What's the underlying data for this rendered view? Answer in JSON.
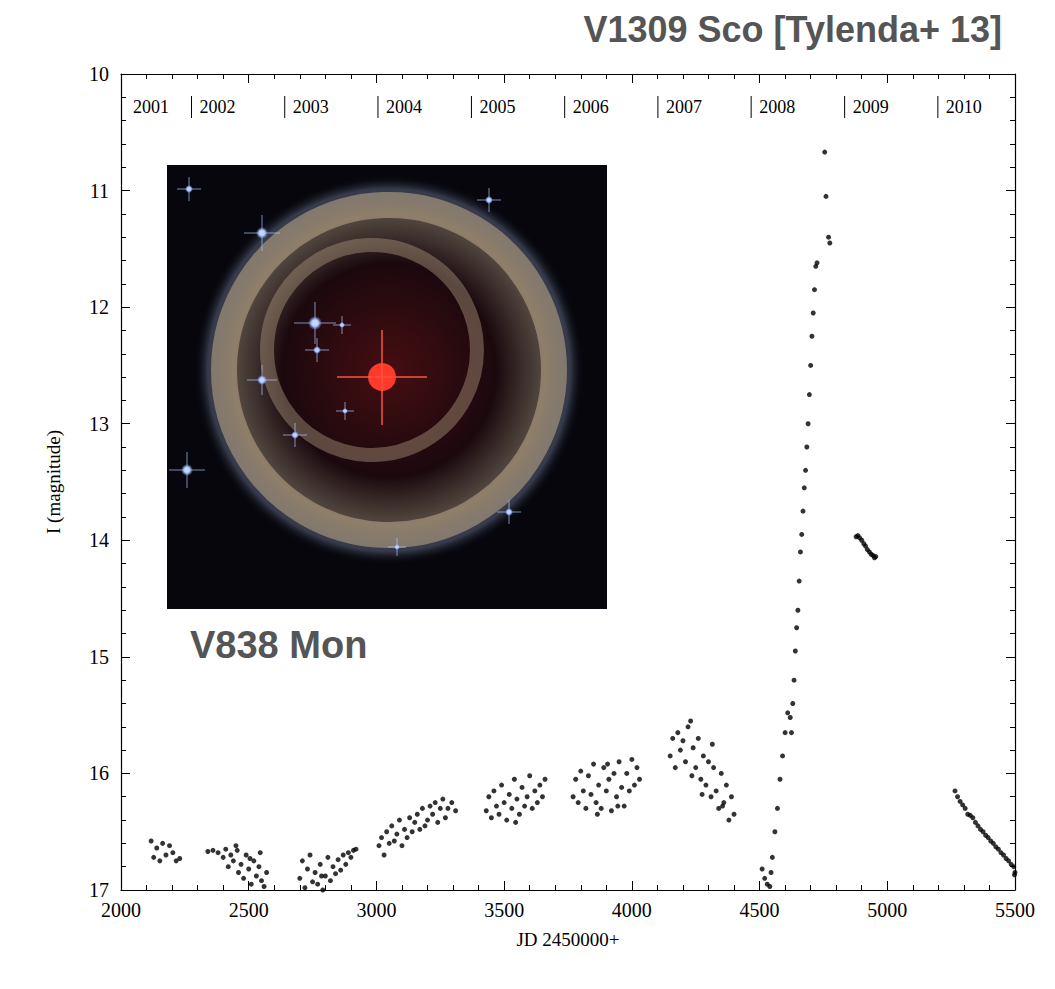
{
  "chart_data": {
    "type": "scatter",
    "title": "V1309 Sco [Tylenda+ 13]",
    "x_label": "JD 2450000+",
    "y_label": "I (magnitude)",
    "inset_label": "V838 Mon",
    "color": "#000000",
    "marker": "circle",
    "grid": false,
    "xlim": [
      2000,
      5500
    ],
    "xticks": [
      2000,
      2500,
      3000,
      3500,
      4000,
      4500,
      5000,
      5500
    ],
    "ylim": [
      10,
      17
    ],
    "yticks": [
      10,
      11,
      12,
      13,
      14,
      15,
      16,
      17
    ],
    "year_labels": [
      {
        "label": "2001",
        "x": 1911
      },
      {
        "label": "2002",
        "x": 2276
      },
      {
        "label": "2003",
        "x": 2641
      },
      {
        "label": "2004",
        "x": 3006
      },
      {
        "label": "2005",
        "x": 3372
      },
      {
        "label": "2006",
        "x": 3737
      },
      {
        "label": "2007",
        "x": 4102
      },
      {
        "label": "2008",
        "x": 4467
      },
      {
        "label": "2009",
        "x": 4833
      },
      {
        "label": "2010",
        "x": 5198
      }
    ],
    "x": [
      2118,
      2128,
      2140,
      2152,
      2163,
      2176,
      2190,
      2203,
      2216,
      2230,
      2340,
      2360,
      2380,
      2400,
      2410,
      2420,
      2430,
      2440,
      2450,
      2460,
      2470,
      2480,
      2490,
      2500,
      2510,
      2520,
      2530,
      2540,
      2550,
      2560,
      2570,
      2455,
      2505,
      2545,
      2700,
      2710,
      2720,
      2730,
      2740,
      2750,
      2760,
      2770,
      2780,
      2790,
      2800,
      2810,
      2820,
      2830,
      2840,
      2850,
      2860,
      2870,
      2880,
      2890,
      2900,
      2910,
      2920,
      2785,
      3010,
      3020,
      3030,
      3040,
      3050,
      3060,
      3070,
      3080,
      3090,
      3100,
      3110,
      3120,
      3130,
      3140,
      3150,
      3160,
      3170,
      3180,
      3190,
      3200,
      3210,
      3220,
      3230,
      3240,
      3250,
      3260,
      3270,
      3280,
      3295,
      3310,
      3430,
      3440,
      3450,
      3460,
      3470,
      3480,
      3490,
      3500,
      3510,
      3520,
      3530,
      3540,
      3550,
      3560,
      3570,
      3580,
      3590,
      3600,
      3610,
      3620,
      3630,
      3640,
      3650,
      3660,
      3545,
      3770,
      3780,
      3790,
      3800,
      3810,
      3820,
      3830,
      3840,
      3850,
      3860,
      3870,
      3880,
      3890,
      3900,
      3910,
      3920,
      3930,
      3940,
      3950,
      3960,
      3970,
      3980,
      3990,
      4000,
      4010,
      4020,
      4030,
      3865,
      3905,
      3945,
      4150,
      4160,
      4170,
      4180,
      4190,
      4200,
      4210,
      4220,
      4230,
      4240,
      4250,
      4260,
      4270,
      4280,
      4290,
      4300,
      4310,
      4320,
      4330,
      4340,
      4350,
      4360,
      4370,
      4380,
      4390,
      4400,
      4235,
      4275,
      4315,
      4355,
      4510,
      4520,
      4530,
      4540,
      4545,
      4550,
      4560,
      4570,
      4580,
      4590,
      4600,
      4610,
      4620,
      4625,
      4630,
      4635,
      4640,
      4645,
      4650,
      4655,
      4660,
      4665,
      4670,
      4675,
      4680,
      4685,
      4690,
      4695,
      4700,
      4705,
      4710,
      4715,
      4720,
      4725,
      4755,
      4760,
      4770,
      4775,
      4878,
      4885,
      4892,
      4900,
      4908,
      4915,
      4922,
      4930,
      4937,
      4944,
      4950,
      4955,
      5265,
      5275,
      5285,
      5295,
      5305,
      5315,
      5325,
      5335,
      5345,
      5355,
      5365,
      5375,
      5385,
      5395,
      5405,
      5415,
      5425,
      5435,
      5445,
      5455,
      5465,
      5475,
      5485,
      5495,
      5500,
      5498
    ],
    "values": [
      16.58,
      16.72,
      16.64,
      16.75,
      16.6,
      16.7,
      16.62,
      16.68,
      16.75,
      16.73,
      16.67,
      16.66,
      16.68,
      16.72,
      16.65,
      16.8,
      16.7,
      16.75,
      16.62,
      16.85,
      16.78,
      16.9,
      16.7,
      16.82,
      16.95,
      16.75,
      16.88,
      16.8,
      16.92,
      16.97,
      16.85,
      16.66,
      16.73,
      16.68,
      16.9,
      16.75,
      16.98,
      16.82,
      16.7,
      16.93,
      16.85,
      16.95,
      16.78,
      17.0,
      16.88,
      16.72,
      16.92,
      16.8,
      16.86,
      16.74,
      16.83,
      16.7,
      16.78,
      16.68,
      16.72,
      16.66,
      16.65,
      16.88,
      16.62,
      16.55,
      16.7,
      16.5,
      16.6,
      16.45,
      16.58,
      16.52,
      16.4,
      16.62,
      16.48,
      16.55,
      16.38,
      16.5,
      16.42,
      16.35,
      16.48,
      16.3,
      16.45,
      16.4,
      16.28,
      16.35,
      16.25,
      16.42,
      16.3,
      16.22,
      16.38,
      16.3,
      16.25,
      16.32,
      16.32,
      16.2,
      16.38,
      16.15,
      16.28,
      16.35,
      16.1,
      16.25,
      16.4,
      16.18,
      16.3,
      16.05,
      16.22,
      16.35,
      16.12,
      16.28,
      16.2,
      16.02,
      16.3,
      16.15,
      16.25,
      16.1,
      16.2,
      16.05,
      16.42,
      16.2,
      16.05,
      16.25,
      15.98,
      16.15,
      16.3,
      16.02,
      16.18,
      15.92,
      16.25,
      16.1,
      16.3,
      15.95,
      16.15,
      16.05,
      16.32,
      16.0,
      16.2,
      15.9,
      16.12,
      16.28,
      16.0,
      16.15,
      15.88,
      16.1,
      15.95,
      16.05,
      16.35,
      15.92,
      16.28,
      15.85,
      15.7,
      15.95,
      15.65,
      15.8,
      15.72,
      15.9,
      15.6,
      15.55,
      15.78,
      15.95,
      15.7,
      16.05,
      15.85,
      16.1,
      15.9,
      16.2,
      15.95,
      16.15,
      16.3,
      16.0,
      16.25,
      16.1,
      16.4,
      16.2,
      16.35,
      16.02,
      16.18,
      15.75,
      16.28,
      16.82,
      16.9,
      16.95,
      16.97,
      16.85,
      16.72,
      16.5,
      16.3,
      16.05,
      15.85,
      15.65,
      15.48,
      15.52,
      15.65,
      15.4,
      15.2,
      14.95,
      14.75,
      14.6,
      14.35,
      14.1,
      13.95,
      13.75,
      13.55,
      13.4,
      13.2,
      13.0,
      12.75,
      12.5,
      12.25,
      12.05,
      11.85,
      11.65,
      11.62,
      10.67,
      11.05,
      11.4,
      11.45,
      13.97,
      13.96,
      13.98,
      14.0,
      14.03,
      14.05,
      14.08,
      14.1,
      14.12,
      14.13,
      14.15,
      14.14,
      16.15,
      16.2,
      16.24,
      16.27,
      16.3,
      16.35,
      16.36,
      16.38,
      16.42,
      16.45,
      16.48,
      16.5,
      16.53,
      16.55,
      16.58,
      16.6,
      16.63,
      16.65,
      16.68,
      16.7,
      16.73,
      16.75,
      16.78,
      16.8,
      16.85,
      16.87
    ]
  }
}
